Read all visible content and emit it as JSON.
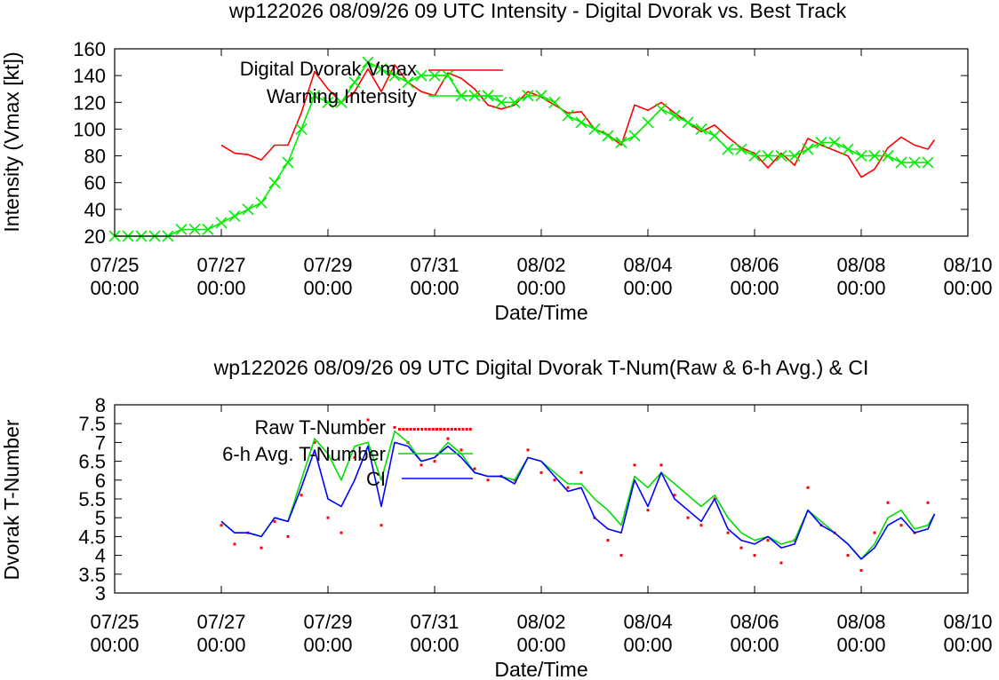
{
  "colors": {
    "dvorak": "#ff0000",
    "warning": "#00ee00",
    "avg": "#0000ff",
    "raw": "#ff0000",
    "ci": "#00dd00"
  },
  "chart_data": [
    {
      "type": "line",
      "title": "wp122026 08/09/26  09 UTC Intensity - Digital Dvorak vs. Best Track",
      "xlabel": "Date/Time",
      "ylabel": "Intensity (Vmax [kt])",
      "xlim": [
        "2026-07-25 00:00",
        "2026-08-10 00:00"
      ],
      "ylim": [
        20,
        160
      ],
      "yticks": [
        20,
        40,
        60,
        80,
        100,
        120,
        140,
        160
      ],
      "xticks": [
        {
          "d": "07/25",
          "t": "00:00"
        },
        {
          "d": "07/27",
          "t": "00:00"
        },
        {
          "d": "07/29",
          "t": "00:00"
        },
        {
          "d": "07/31",
          "t": "00:00"
        },
        {
          "d": "08/02",
          "t": "00:00"
        },
        {
          "d": "08/04",
          "t": "00:00"
        },
        {
          "d": "08/06",
          "t": "00:00"
        },
        {
          "d": "08/08",
          "t": "00:00"
        },
        {
          "d": "08/10",
          "t": "00:00"
        }
      ],
      "grid": false,
      "legend": "top-left",
      "series": [
        {
          "name": "Digital Dvorak Vmax",
          "style": "line",
          "x": [
            "2026-07-27 00:00",
            "2026-07-27 06:00",
            "2026-07-27 12:00",
            "2026-07-27 18:00",
            "2026-07-28 00:00",
            "2026-07-28 06:00",
            "2026-07-28 12:00",
            "2026-07-28 18:00",
            "2026-07-29 00:00",
            "2026-07-29 06:00",
            "2026-07-29 12:00",
            "2026-07-29 18:00",
            "2026-07-30 00:00",
            "2026-07-30 06:00",
            "2026-07-30 12:00",
            "2026-07-30 18:00",
            "2026-07-31 00:00",
            "2026-07-31 06:00",
            "2026-07-31 12:00",
            "2026-07-31 18:00",
            "2026-08-01 00:00",
            "2026-08-01 06:00",
            "2026-08-01 12:00",
            "2026-08-01 18:00",
            "2026-08-02 00:00",
            "2026-08-02 06:00",
            "2026-08-02 12:00",
            "2026-08-02 18:00",
            "2026-08-03 00:00",
            "2026-08-03 06:00",
            "2026-08-03 12:00",
            "2026-08-03 18:00",
            "2026-08-04 00:00",
            "2026-08-04 06:00",
            "2026-08-04 12:00",
            "2026-08-04 18:00",
            "2026-08-05 00:00",
            "2026-08-05 06:00",
            "2026-08-05 12:00",
            "2026-08-05 18:00",
            "2026-08-06 00:00",
            "2026-08-06 06:00",
            "2026-08-06 12:00",
            "2026-08-06 18:00",
            "2026-08-07 00:00",
            "2026-08-07 06:00",
            "2026-08-07 12:00",
            "2026-08-07 18:00",
            "2026-08-08 00:00",
            "2026-08-08 06:00",
            "2026-08-08 12:00",
            "2026-08-08 18:00",
            "2026-08-09 00:00",
            "2026-08-09 06:00",
            "2026-08-09 09:00"
          ],
          "y": [
            88,
            82,
            81,
            77,
            88,
            88,
            112,
            143,
            130,
            120,
            128,
            145,
            128,
            148,
            135,
            128,
            125,
            142,
            138,
            130,
            118,
            115,
            118,
            128,
            124,
            118,
            112,
            113,
            100,
            96,
            88,
            118,
            114,
            120,
            112,
            105,
            98,
            103,
            94,
            86,
            82,
            71,
            82,
            73,
            93,
            88,
            84,
            80,
            64,
            70,
            86,
            94,
            88,
            85,
            92
          ]
        },
        {
          "name": "Warning Intensity",
          "style": "line+x",
          "x": [
            "2026-07-25 00:00",
            "2026-07-25 06:00",
            "2026-07-25 12:00",
            "2026-07-25 18:00",
            "2026-07-26 00:00",
            "2026-07-26 06:00",
            "2026-07-26 12:00",
            "2026-07-26 18:00",
            "2026-07-27 00:00",
            "2026-07-27 06:00",
            "2026-07-27 12:00",
            "2026-07-27 18:00",
            "2026-07-28 00:00",
            "2026-07-28 06:00",
            "2026-07-28 12:00",
            "2026-07-28 18:00",
            "2026-07-29 00:00",
            "2026-07-29 06:00",
            "2026-07-29 12:00",
            "2026-07-29 18:00",
            "2026-07-30 00:00",
            "2026-07-30 06:00",
            "2026-07-30 12:00",
            "2026-07-30 18:00",
            "2026-07-31 00:00",
            "2026-07-31 06:00",
            "2026-07-31 12:00",
            "2026-07-31 18:00",
            "2026-08-01 00:00",
            "2026-08-01 06:00",
            "2026-08-01 12:00",
            "2026-08-01 18:00",
            "2026-08-02 00:00",
            "2026-08-02 06:00",
            "2026-08-02 12:00",
            "2026-08-02 18:00",
            "2026-08-03 00:00",
            "2026-08-03 06:00",
            "2026-08-03 12:00",
            "2026-08-03 18:00",
            "2026-08-04 00:00",
            "2026-08-04 06:00",
            "2026-08-04 12:00",
            "2026-08-04 18:00",
            "2026-08-05 00:00",
            "2026-08-05 06:00",
            "2026-08-05 12:00",
            "2026-08-05 18:00",
            "2026-08-06 00:00",
            "2026-08-06 06:00",
            "2026-08-06 12:00",
            "2026-08-06 18:00",
            "2026-08-07 00:00",
            "2026-08-07 06:00",
            "2026-08-07 12:00",
            "2026-08-07 18:00",
            "2026-08-08 00:00",
            "2026-08-08 06:00",
            "2026-08-08 12:00",
            "2026-08-08 18:00",
            "2026-08-09 00:00",
            "2026-08-09 06:00"
          ],
          "y": [
            20,
            20,
            20,
            20,
            20,
            25,
            25,
            25,
            30,
            35,
            40,
            45,
            60,
            75,
            100,
            125,
            120,
            120,
            135,
            150,
            145,
            140,
            135,
            140,
            140,
            140,
            125,
            125,
            125,
            120,
            120,
            125,
            125,
            120,
            110,
            105,
            100,
            95,
            90,
            95,
            105,
            115,
            110,
            105,
            100,
            95,
            85,
            85,
            80,
            80,
            80,
            80,
            85,
            90,
            90,
            85,
            80,
            80,
            80,
            75,
            75,
            75
          ]
        }
      ]
    },
    {
      "type": "line",
      "title": "wp122026 08/09/26  09 UTC Digital Dvorak T-Num(Raw & 6-h Avg.) & CI",
      "xlabel": "Date/Time",
      "ylabel": "Dvorak T-Number",
      "xlim": [
        "2026-07-25 00:00",
        "2026-08-10 00:00"
      ],
      "ylim": [
        3,
        8
      ],
      "yticks": [
        3,
        3.5,
        4,
        4.5,
        5,
        5.5,
        6,
        6.5,
        7,
        7.5,
        8
      ],
      "xticks": [
        {
          "d": "07/25",
          "t": "00:00"
        },
        {
          "d": "07/27",
          "t": "00:00"
        },
        {
          "d": "07/29",
          "t": "00:00"
        },
        {
          "d": "07/31",
          "t": "00:00"
        },
        {
          "d": "08/02",
          "t": "00:00"
        },
        {
          "d": "08/04",
          "t": "00:00"
        },
        {
          "d": "08/06",
          "t": "00:00"
        },
        {
          "d": "08/08",
          "t": "00:00"
        },
        {
          "d": "08/10",
          "t": "00:00"
        }
      ],
      "grid": false,
      "legend": "top-left",
      "series": [
        {
          "name": "Raw T-Number",
          "style": "dots",
          "x": [
            "2026-07-27 00:00",
            "2026-07-27 06:00",
            "2026-07-27 12:00",
            "2026-07-27 18:00",
            "2026-07-28 00:00",
            "2026-07-28 06:00",
            "2026-07-28 12:00",
            "2026-07-28 18:00",
            "2026-07-29 00:00",
            "2026-07-29 06:00",
            "2026-07-29 12:00",
            "2026-07-29 18:00",
            "2026-07-30 00:00",
            "2026-07-30 06:00",
            "2026-07-30 12:00",
            "2026-07-30 18:00",
            "2026-07-31 00:00",
            "2026-07-31 06:00",
            "2026-07-31 12:00",
            "2026-07-31 18:00",
            "2026-08-01 00:00",
            "2026-08-01 06:00",
            "2026-08-01 12:00",
            "2026-08-01 18:00",
            "2026-08-02 00:00",
            "2026-08-02 06:00",
            "2026-08-02 12:00",
            "2026-08-02 18:00",
            "2026-08-03 00:00",
            "2026-08-03 06:00",
            "2026-08-03 12:00",
            "2026-08-03 18:00",
            "2026-08-04 00:00",
            "2026-08-04 06:00",
            "2026-08-04 12:00",
            "2026-08-04 18:00",
            "2026-08-05 00:00",
            "2026-08-05 06:00",
            "2026-08-05 12:00",
            "2026-08-05 18:00",
            "2026-08-06 00:00",
            "2026-08-06 06:00",
            "2026-08-06 12:00",
            "2026-08-06 18:00",
            "2026-08-07 00:00",
            "2026-08-07 06:00",
            "2026-08-07 12:00",
            "2026-08-07 18:00",
            "2026-08-08 00:00",
            "2026-08-08 06:00",
            "2026-08-08 12:00",
            "2026-08-08 18:00",
            "2026-08-09 00:00",
            "2026-08-09 06:00"
          ],
          "y": [
            4.8,
            4.3,
            4.6,
            4.2,
            4.9,
            4.5,
            5.6,
            7.0,
            5.0,
            4.6,
            6.6,
            7.6,
            4.8,
            7.4,
            7.0,
            6.4,
            6.5,
            7.1,
            6.8,
            6.3,
            6.0,
            6.1,
            6.0,
            6.8,
            6.2,
            6.0,
            5.8,
            6.2,
            5.0,
            4.4,
            4.0,
            6.4,
            5.2,
            6.4,
            5.6,
            5.0,
            4.8,
            5.5,
            4.6,
            4.2,
            4.0,
            4.4,
            3.8,
            4.4,
            5.8,
            4.8,
            4.6,
            4.0,
            3.6,
            4.6,
            5.4,
            4.8,
            4.6,
            5.4
          ]
        },
        {
          "name": "6-h Avg. T-Number",
          "style": "line",
          "x": [
            "2026-07-27 00:00",
            "2026-07-27 06:00",
            "2026-07-27 12:00",
            "2026-07-27 18:00",
            "2026-07-28 00:00",
            "2026-07-28 06:00",
            "2026-07-28 12:00",
            "2026-07-28 18:00",
            "2026-07-29 00:00",
            "2026-07-29 06:00",
            "2026-07-29 12:00",
            "2026-07-29 18:00",
            "2026-07-30 00:00",
            "2026-07-30 06:00",
            "2026-07-30 12:00",
            "2026-07-30 18:00",
            "2026-07-31 00:00",
            "2026-07-31 06:00",
            "2026-07-31 12:00",
            "2026-07-31 18:00",
            "2026-08-01 00:00",
            "2026-08-01 06:00",
            "2026-08-01 12:00",
            "2026-08-01 18:00",
            "2026-08-02 00:00",
            "2026-08-02 06:00",
            "2026-08-02 12:00",
            "2026-08-02 18:00",
            "2026-08-03 00:00",
            "2026-08-03 06:00",
            "2026-08-03 12:00",
            "2026-08-03 18:00",
            "2026-08-04 00:00",
            "2026-08-04 06:00",
            "2026-08-04 12:00",
            "2026-08-04 18:00",
            "2026-08-05 00:00",
            "2026-08-05 06:00",
            "2026-08-05 12:00",
            "2026-08-05 18:00",
            "2026-08-06 00:00",
            "2026-08-06 06:00",
            "2026-08-06 12:00",
            "2026-08-06 18:00",
            "2026-08-07 00:00",
            "2026-08-07 06:00",
            "2026-08-07 12:00",
            "2026-08-07 18:00",
            "2026-08-08 00:00",
            "2026-08-08 06:00",
            "2026-08-08 12:00",
            "2026-08-08 18:00",
            "2026-08-09 00:00",
            "2026-08-09 06:00",
            "2026-08-09 09:00"
          ],
          "y": [
            4.9,
            4.6,
            4.6,
            4.5,
            5.0,
            4.9,
            6.0,
            7.1,
            6.7,
            6.0,
            6.9,
            7.0,
            6.0,
            7.3,
            7.0,
            6.5,
            6.6,
            7.0,
            6.7,
            6.2,
            6.1,
            6.1,
            6.0,
            6.6,
            6.5,
            6.2,
            5.9,
            5.9,
            5.5,
            5.2,
            4.8,
            6.1,
            5.8,
            6.2,
            5.9,
            5.6,
            5.3,
            5.6,
            5.0,
            4.6,
            4.4,
            4.5,
            4.3,
            4.4,
            5.2,
            4.9,
            4.6,
            4.3,
            3.9,
            4.3,
            5.0,
            5.2,
            4.7,
            4.8,
            5.1
          ]
        },
        {
          "name": "CI",
          "style": "line",
          "x": [
            "2026-07-27 00:00",
            "2026-07-27 06:00",
            "2026-07-27 12:00",
            "2026-07-27 18:00",
            "2026-07-28 00:00",
            "2026-07-28 06:00",
            "2026-07-28 12:00",
            "2026-07-28 18:00",
            "2026-07-29 00:00",
            "2026-07-29 06:00",
            "2026-07-29 12:00",
            "2026-07-29 18:00",
            "2026-07-30 00:00",
            "2026-07-30 06:00",
            "2026-07-30 12:00",
            "2026-07-30 18:00",
            "2026-07-31 00:00",
            "2026-07-31 06:00",
            "2026-07-31 12:00",
            "2026-07-31 18:00",
            "2026-08-01 00:00",
            "2026-08-01 06:00",
            "2026-08-01 12:00",
            "2026-08-01 18:00",
            "2026-08-02 00:00",
            "2026-08-02 06:00",
            "2026-08-02 12:00",
            "2026-08-02 18:00",
            "2026-08-03 00:00",
            "2026-08-03 06:00",
            "2026-08-03 12:00",
            "2026-08-03 18:00",
            "2026-08-04 00:00",
            "2026-08-04 06:00",
            "2026-08-04 12:00",
            "2026-08-04 18:00",
            "2026-08-05 00:00",
            "2026-08-05 06:00",
            "2026-08-05 12:00",
            "2026-08-05 18:00",
            "2026-08-06 00:00",
            "2026-08-06 06:00",
            "2026-08-06 12:00",
            "2026-08-06 18:00",
            "2026-08-07 00:00",
            "2026-08-07 06:00",
            "2026-08-07 12:00",
            "2026-08-07 18:00",
            "2026-08-08 00:00",
            "2026-08-08 06:00",
            "2026-08-08 12:00",
            "2026-08-08 18:00",
            "2026-08-09 00:00",
            "2026-08-09 06:00",
            "2026-08-09 09:00"
          ],
          "y": [
            4.9,
            4.6,
            4.6,
            4.5,
            5.0,
            4.9,
            5.8,
            6.8,
            5.5,
            5.3,
            6.0,
            6.9,
            5.3,
            7.0,
            6.9,
            6.5,
            6.6,
            6.9,
            6.6,
            6.2,
            6.1,
            6.1,
            5.9,
            6.6,
            6.5,
            6.1,
            5.7,
            5.8,
            5.0,
            4.7,
            4.6,
            6.0,
            5.3,
            6.2,
            5.5,
            5.2,
            4.9,
            5.5,
            4.7,
            4.4,
            4.3,
            4.5,
            4.2,
            4.3,
            5.2,
            4.8,
            4.6,
            4.3,
            3.9,
            4.2,
            4.8,
            5.0,
            4.6,
            4.7,
            5.1
          ]
        }
      ]
    }
  ]
}
